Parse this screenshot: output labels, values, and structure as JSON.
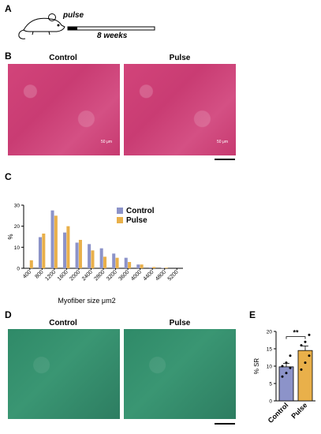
{
  "panels": {
    "a": {
      "letter": "A",
      "pulse_label": "pulse",
      "duration_label": "8 weeks"
    },
    "b": {
      "letter": "B",
      "left_title": "Control",
      "right_title": "Pulse",
      "left_scale_text": "50 μm",
      "right_scale_text": "50 μm"
    },
    "c": {
      "letter": "C"
    },
    "d": {
      "letter": "D",
      "left_title": "Control",
      "right_title": "Pulse"
    },
    "e": {
      "letter": "E"
    }
  },
  "colors": {
    "control": "#8c93c9",
    "pulse": "#e9b04a",
    "he_stain": "#d2447a",
    "sr_stain": "#2f8a68"
  },
  "icons": [
    "mouse-icon"
  ],
  "chart_data": [
    {
      "type": "bar",
      "ylabel": "%",
      "xlabel": "Myofiber size μm2",
      "categories": [
        "400",
        "800",
        "1200",
        "1600",
        "2000",
        "2400",
        "2800",
        "3200",
        "3600",
        "4000",
        "4400",
        "4800",
        "5200"
      ],
      "series": [
        {
          "name": "Control",
          "values": [
            0,
            14.8,
            27.5,
            17,
            12.2,
            11.5,
            9.5,
            7,
            5,
            1.8,
            0.4,
            0.2,
            0
          ]
        },
        {
          "name": "Pulse",
          "values": [
            3.8,
            16.5,
            25,
            20,
            13.5,
            8.5,
            5.5,
            5,
            3,
            1.8,
            0.6,
            0.3,
            0
          ]
        }
      ],
      "ylim": [
        0,
        30
      ],
      "yticks": [
        0,
        10,
        20,
        30
      ],
      "legend_position": "right"
    },
    {
      "type": "bar",
      "ylabel": "% SR",
      "categories": [
        "Control",
        "Pulse"
      ],
      "values": [
        9.8,
        14.5
      ],
      "errors": [
        1.0,
        1.3
      ],
      "points": [
        [
          7,
          8,
          9.5,
          10,
          11,
          13
        ],
        [
          9,
          11,
          13,
          16,
          17,
          19
        ]
      ],
      "significance": "**",
      "ylim": [
        0,
        20
      ],
      "yticks": [
        0,
        5,
        10,
        15,
        20
      ]
    }
  ]
}
